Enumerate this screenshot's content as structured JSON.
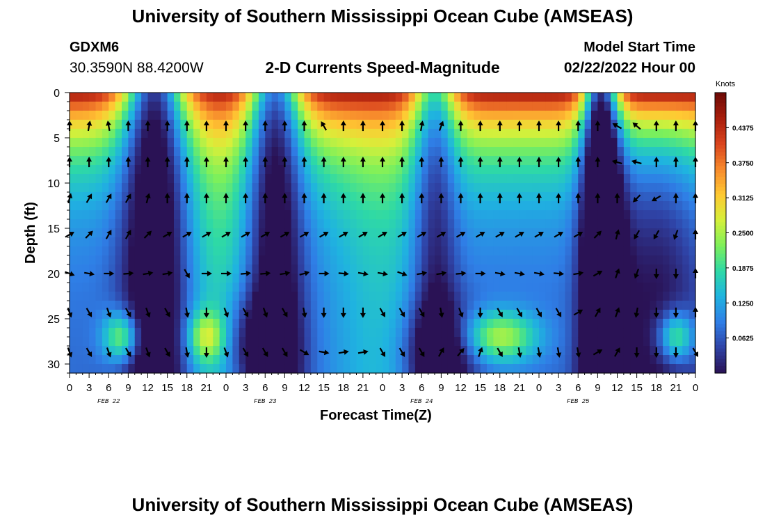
{
  "header": {
    "title": "University of Southern Mississippi Ocean Cube (AMSEAS)",
    "station_id": "GDXM6",
    "coords": "30.3590N  88.4200W",
    "subtitle": "2-D Currents Speed-Magnitude",
    "start_label": "Model Start Time",
    "start_value": "02/22/2022 Hour 00"
  },
  "footer": {
    "title": "University of Southern Mississippi Ocean Cube (AMSEAS)"
  },
  "chart_data": {
    "type": "heatmap",
    "title": "2-D Currents Speed-Magnitude",
    "xlabel": "Forecast Time(Z)",
    "ylabel": "Depth (ft)",
    "x_ticks": [
      "0",
      "3",
      "6",
      "9",
      "12",
      "15",
      "18",
      "21",
      "0",
      "3",
      "6",
      "9",
      "12",
      "15",
      "18",
      "21",
      "0",
      "3",
      "6",
      "9",
      "12",
      "15",
      "18",
      "21",
      "0",
      "3",
      "6",
      "9",
      "12",
      "15",
      "18",
      "21",
      "0"
    ],
    "date_labels": [
      {
        "hour": 6,
        "label": "FEB 22"
      },
      {
        "hour": 30,
        "label": "FEB 23"
      },
      {
        "hour": 54,
        "label": "FEB 24"
      },
      {
        "hour": 78,
        "label": "FEB 25"
      }
    ],
    "x_range_hours": [
      0,
      96
    ],
    "y_ticks": [
      0,
      5,
      10,
      15,
      20,
      25,
      30
    ],
    "ylim": [
      0,
      31
    ],
    "colorbar": {
      "unit": "Knots",
      "min": 0,
      "max": 0.5,
      "ticks": [
        "0.4375",
        "0.3750",
        "0.3125",
        "0.2500",
        "0.1875",
        "0.1250",
        "0.0625"
      ]
    },
    "colors": {
      "c0": "#2a1255",
      "c1": "#2f43a6",
      "c2": "#2f7ee6",
      "c3": "#1fb3e0",
      "c4": "#2ed9a6",
      "c5": "#7ef05a",
      "c6": "#d6f03a",
      "c7": "#ffc933",
      "c8": "#f7892c",
      "c9": "#d9431d",
      "c10": "#a81e0c",
      "c11": "#6b0a06"
    },
    "vector_depths_ft": [
      3.7,
      7.7,
      11.7,
      15.7,
      20,
      24.3,
      28.7
    ],
    "vector_hours": [
      0,
      3,
      6,
      9,
      12,
      15,
      18,
      21,
      24,
      27,
      30,
      33,
      36,
      39,
      42,
      45,
      48,
      51,
      54,
      57,
      60,
      63,
      66,
      69,
      72,
      75,
      78,
      81,
      84,
      87,
      90,
      93,
      96
    ],
    "vector_directions_deg": [
      [
        0,
        10,
        -10,
        0,
        0,
        0,
        0,
        0,
        0,
        0,
        0,
        0,
        0,
        -30,
        0,
        0,
        0,
        0,
        10,
        20,
        0,
        0,
        0,
        0,
        0,
        0,
        0,
        0,
        -60,
        -50,
        0,
        0,
        0
      ],
      [
        0,
        0,
        0,
        0,
        0,
        0,
        0,
        0,
        0,
        0,
        0,
        0,
        0,
        0,
        0,
        0,
        0,
        0,
        0,
        0,
        0,
        0,
        0,
        0,
        0,
        0,
        0,
        0,
        -75,
        -75,
        0,
        0,
        0
      ],
      [
        15,
        30,
        30,
        30,
        15,
        0,
        0,
        0,
        0,
        0,
        0,
        0,
        0,
        0,
        0,
        0,
        0,
        0,
        0,
        0,
        0,
        0,
        0,
        0,
        0,
        0,
        0,
        0,
        0,
        -135,
        -120,
        0,
        0
      ],
      [
        60,
        45,
        30,
        30,
        45,
        60,
        60,
        60,
        60,
        60,
        60,
        60,
        60,
        60,
        60,
        60,
        60,
        60,
        60,
        60,
        60,
        60,
        60,
        60,
        60,
        60,
        60,
        45,
        15,
        -150,
        -150,
        -160,
        0
      ],
      [
        110,
        100,
        90,
        85,
        80,
        80,
        150,
        90,
        90,
        85,
        85,
        80,
        75,
        90,
        95,
        100,
        100,
        110,
        80,
        80,
        85,
        90,
        100,
        100,
        100,
        95,
        80,
        60,
        20,
        -160,
        180,
        180,
        0
      ],
      [
        160,
        150,
        160,
        150,
        160,
        150,
        170,
        180,
        160,
        150,
        160,
        150,
        170,
        180,
        180,
        180,
        150,
        150,
        150,
        170,
        160,
        180,
        150,
        150,
        150,
        150,
        60,
        30,
        20,
        -170,
        180,
        180,
        0
      ],
      [
        160,
        150,
        160,
        150,
        160,
        150,
        170,
        180,
        160,
        150,
        150,
        150,
        120,
        100,
        80,
        80,
        150,
        150,
        150,
        30,
        40,
        20,
        150,
        170,
        170,
        170,
        170,
        60,
        30,
        180,
        180,
        180,
        150
      ]
    ]
  }
}
